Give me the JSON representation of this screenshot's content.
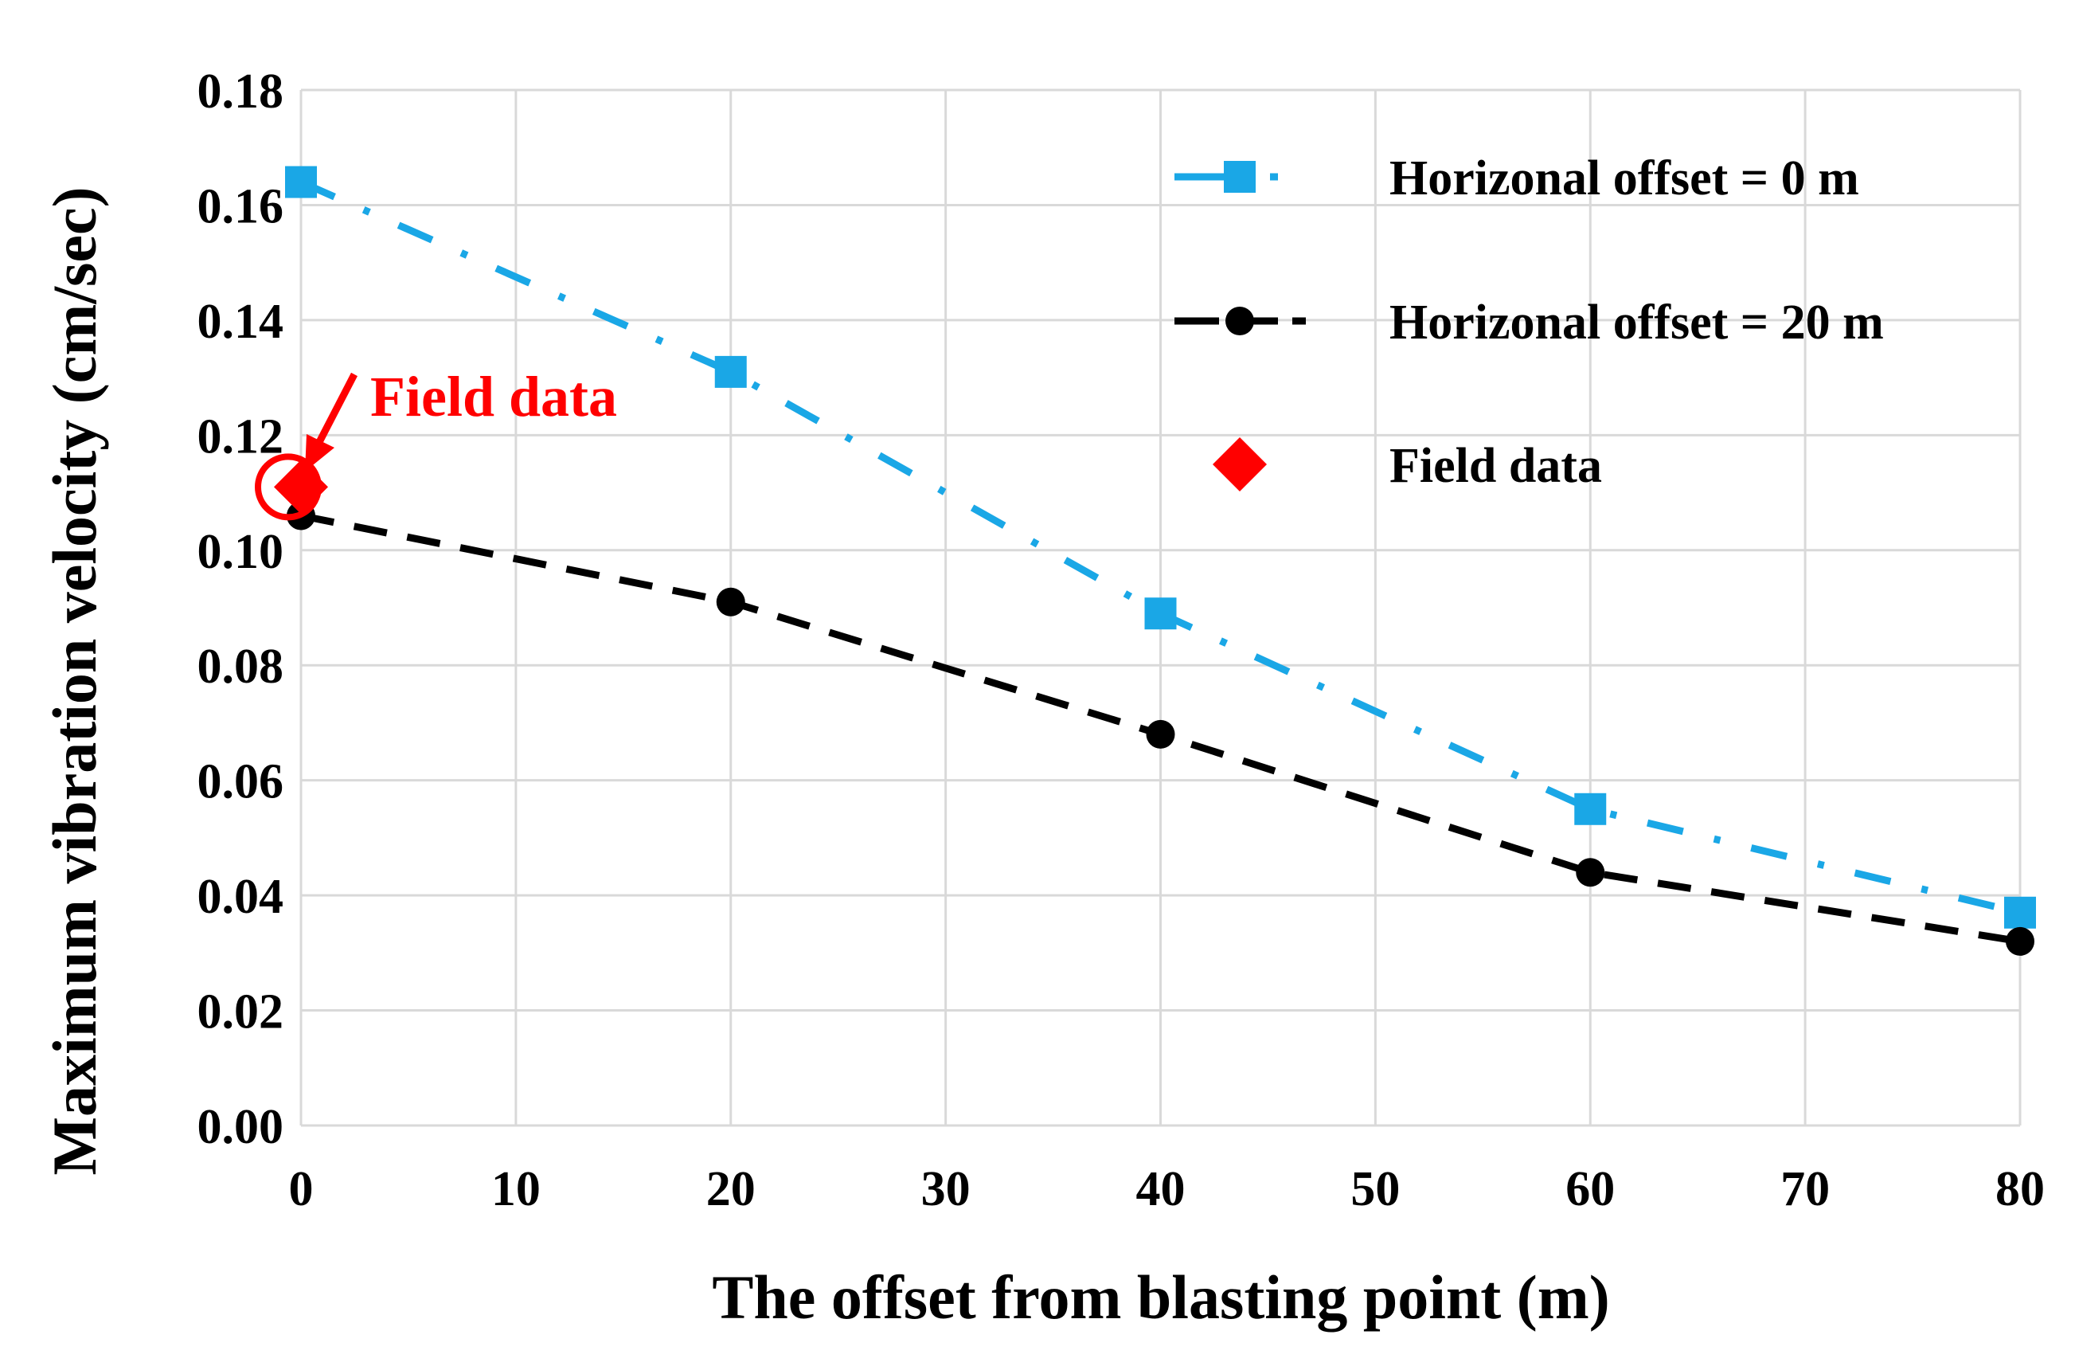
{
  "chart_data": {
    "type": "line",
    "title": "",
    "xlabel": "The offset from blasting point (m)",
    "ylabel": "Maximum vibration velocity (cm/sec)",
    "xlim": [
      0,
      80
    ],
    "ylim": [
      0,
      0.18
    ],
    "x_ticks": [
      "0",
      "10",
      "20",
      "30",
      "40",
      "50",
      "60",
      "70",
      "80"
    ],
    "y_ticks": [
      "0.00",
      "0.02",
      "0.04",
      "0.06",
      "0.08",
      "0.10",
      "0.12",
      "0.14",
      "0.16",
      "0.18"
    ],
    "grid": true,
    "legend_position": "top-right",
    "series": [
      {
        "name": "Horizonal offset = 0 m",
        "color": "#1aa7e6",
        "marker": "square",
        "line_style": "dash-dot",
        "x": [
          0,
          20,
          40,
          60,
          80
        ],
        "y": [
          0.164,
          0.131,
          0.089,
          0.055,
          0.037
        ]
      },
      {
        "name": "Horizonal offset = 20 m",
        "color": "#000000",
        "marker": "circle",
        "line_style": "dashed",
        "x": [
          0,
          20,
          40,
          60,
          80
        ],
        "y": [
          0.106,
          0.091,
          0.068,
          0.044,
          0.032
        ]
      },
      {
        "name": "Field data",
        "color": "#ff0000",
        "marker": "diamond",
        "line_style": "none",
        "x": [
          0
        ],
        "y": [
          0.111
        ]
      }
    ],
    "annotations": [
      {
        "text": "Field data",
        "x": 0,
        "y": 0.111,
        "color": "#ff0000"
      }
    ]
  }
}
